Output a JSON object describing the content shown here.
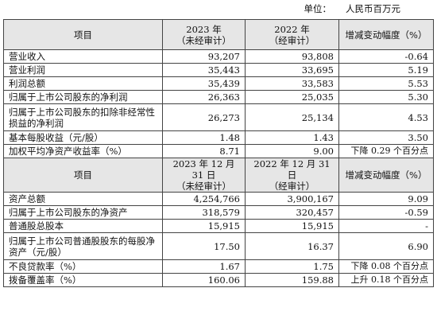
{
  "unit_label": "单位：",
  "unit_value": "人民币百万元",
  "table1": {
    "headers": [
      "项目",
      "2023 年\n（未经审计）",
      "2022 年\n（经审计）",
      "增减变动幅度（%）"
    ],
    "rows": [
      [
        "营业收入",
        "93,207",
        "93,808",
        "-0.64"
      ],
      [
        "营业利润",
        "35,443",
        "33,695",
        "5.19"
      ],
      [
        "利润总额",
        "35,439",
        "33,583",
        "5.53"
      ],
      [
        "归属于上市公司股东的净利润",
        "26,363",
        "25,035",
        "5.30"
      ],
      [
        "归属于上市公司股东的扣除非经常性损益的净利润",
        "26,273",
        "25,134",
        "4.53"
      ],
      [
        "基本每股收益（元/股）",
        "1.48",
        "1.43",
        "3.50"
      ],
      [
        "加权平均净资产收益率（%）",
        "8.71",
        "9.00",
        "下降 0.29 个百分点"
      ]
    ]
  },
  "table2": {
    "headers": [
      "项目",
      "2023 年 12 月 31 日\n（未经审计）",
      "2022 年 12 月 31 日\n（经审计）",
      "增减变动幅度（%）"
    ],
    "rows": [
      [
        "资产总额",
        "4,254,766",
        "3,900,167",
        "9.09"
      ],
      [
        "归属于上市公司股东的净资产",
        "318,579",
        "320,457",
        "-0.59"
      ],
      [
        "普通股总股本",
        "15,915",
        "15,915",
        "-"
      ],
      [
        "归属于上市公司普通股股东的每股净资产（元/股）",
        "17.50",
        "16.37",
        "6.90"
      ],
      [
        "不良贷款率（%）",
        "1.67",
        "1.75",
        "下降 0.08 个百分点"
      ],
      [
        "拨备覆盖率（%）",
        "160.06",
        "159.88",
        "上升 0.18 个百分点"
      ]
    ]
  }
}
